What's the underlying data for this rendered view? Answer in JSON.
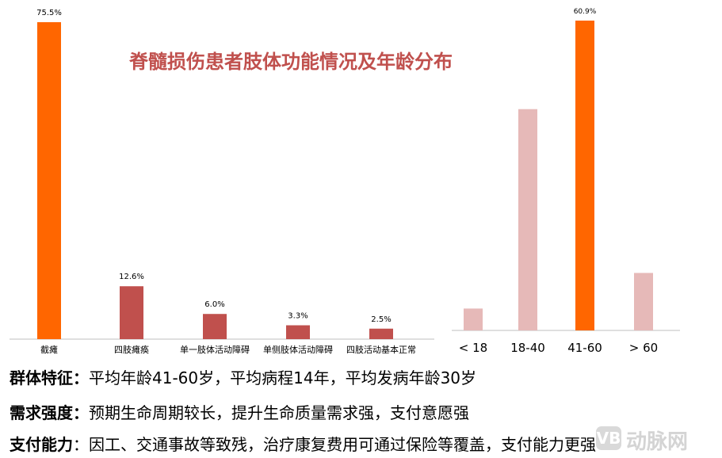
{
  "title": "脊髓损伤患者肢体功能情况及年龄分布",
  "colors": {
    "orange": "#ff6600",
    "red": "#c0504d",
    "pink": "#e6b9b8",
    "title": "#c0504d",
    "axis": "#bfbfbf"
  },
  "chart_data": [
    {
      "type": "bar",
      "categories": [
        "截瘫",
        "四肢瘫痪",
        "单一肢体活动障碍",
        "单侧肢体活动障碍",
        "四肢活动基本正常"
      ],
      "values": [
        75.5,
        12.6,
        6.0,
        3.3,
        2.5
      ],
      "data_labels": [
        "75.5%",
        "12.6%",
        "6.0%",
        "3.3%",
        "2.5%"
      ],
      "highlight_index": 0,
      "ylim": [
        0,
        75.5
      ]
    },
    {
      "type": "bar",
      "categories": [
        "< 18",
        "18-40",
        "41-60",
        "> 60"
      ],
      "values": [
        4.3,
        43.5,
        60.9,
        11.3
      ],
      "data_labels": [
        "",
        "",
        "60.9%",
        ""
      ],
      "highlight_index": 2,
      "ylim": [
        0,
        60.9
      ]
    }
  ],
  "info": [
    {
      "key": "群体特征：",
      "value": "平均年龄41-60岁，平均病程14年，平均发病年龄30岁"
    },
    {
      "key": "需求强度：",
      "value": "预期生命周期较长，提升生命质量需求强，支付意愿强"
    },
    {
      "key": "支付能力",
      "value": "：因工、交通事故等致残，治疗康复费用可通过保险等覆盖，支付能力更强"
    }
  ],
  "watermark": {
    "badge": "VB",
    "text": "动脉网"
  }
}
